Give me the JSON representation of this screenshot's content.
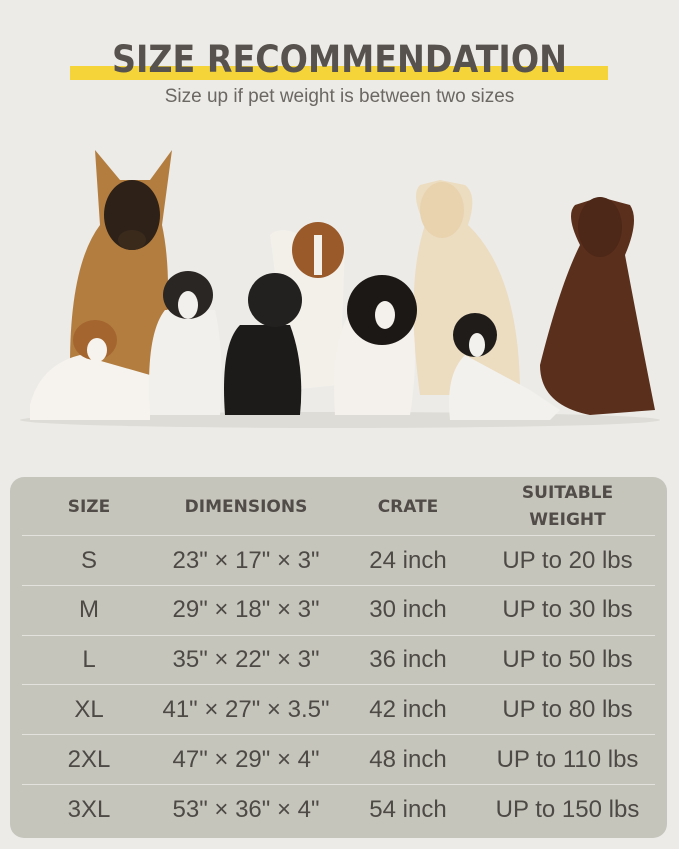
{
  "header": {
    "title": "SIZE RECOMMENDATION",
    "subtitle": "Size up if pet weight is between two sizes",
    "highlight_color": "#f5d43a"
  },
  "photo": {
    "description_icon": "dogs-group-photo"
  },
  "table": {
    "headers": [
      "SIZE",
      "DIMENSIONS",
      "CRATE",
      "SUITABLE\nWEIGHT"
    ],
    "header_line1": "SUITABLE",
    "header_line2": "WEIGHT",
    "rows": [
      {
        "size": "S",
        "dimensions": "23\" × 17\" × 3\"",
        "crate": "24 inch",
        "weight": "UP to 20 lbs"
      },
      {
        "size": "M",
        "dimensions": "29\" × 18\" × 3\"",
        "crate": "30 inch",
        "weight": "UP to 30 lbs"
      },
      {
        "size": "L",
        "dimensions": "35\" × 22\" × 3\"",
        "crate": "36 inch",
        "weight": "UP to 50 lbs"
      },
      {
        "size": "XL",
        "dimensions": "41\" × 27\" × 3.5\"",
        "crate": "42 inch",
        "weight": "UP to 80 lbs"
      },
      {
        "size": "2XL",
        "dimensions": "47\" × 29\" × 4\"",
        "crate": "48 inch",
        "weight": "UP to 110 lbs"
      },
      {
        "size": "3XL",
        "dimensions": "53\" × 36\" × 4\"",
        "crate": "54 inch",
        "weight": "UP to 150 lbs"
      }
    ]
  }
}
